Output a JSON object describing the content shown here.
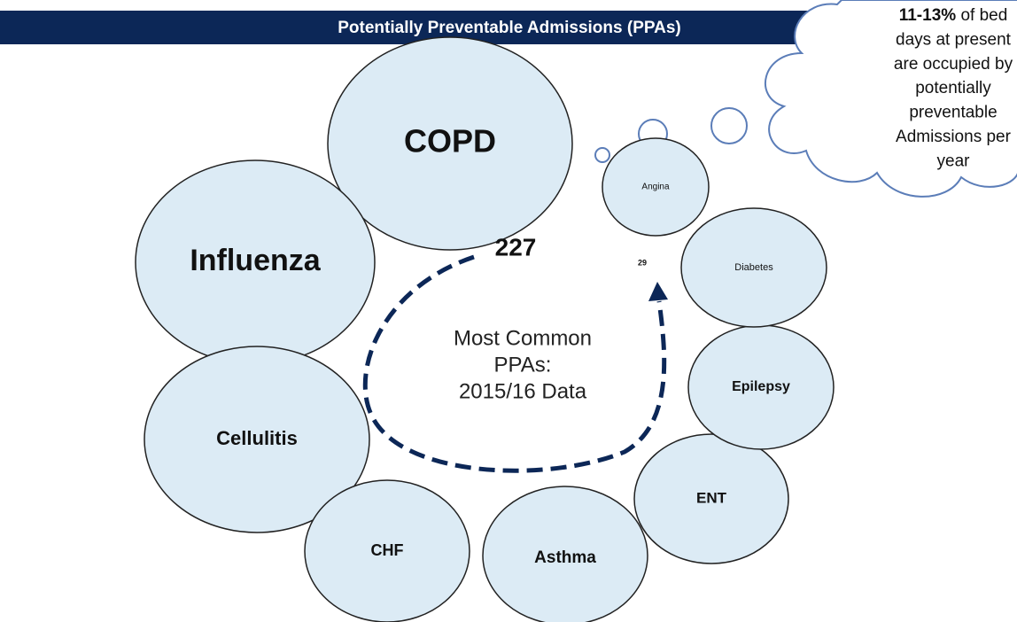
{
  "header": {
    "title": "Potentially Preventable Admissions (PPAs)"
  },
  "callout": {
    "highlight": "11-13%",
    "lines": [
      " of bed",
      "days at present",
      "are occupied by",
      "potentially",
      "preventable",
      "Admissions per",
      "year"
    ]
  },
  "circles": [
    {
      "label": "COPD"
    },
    {
      "label": "Influenza"
    },
    {
      "label": "Cellulitis"
    },
    {
      "label": "CHF"
    },
    {
      "label": "Asthma"
    },
    {
      "label": "ENT"
    },
    {
      "label": "Epilepsy"
    },
    {
      "label": "Diabetes"
    },
    {
      "label": "Angina"
    }
  ],
  "numbers": [
    "227",
    "29"
  ],
  "center": [
    "Most Common",
    "PPAs:",
    "2015/16 Data"
  ]
}
